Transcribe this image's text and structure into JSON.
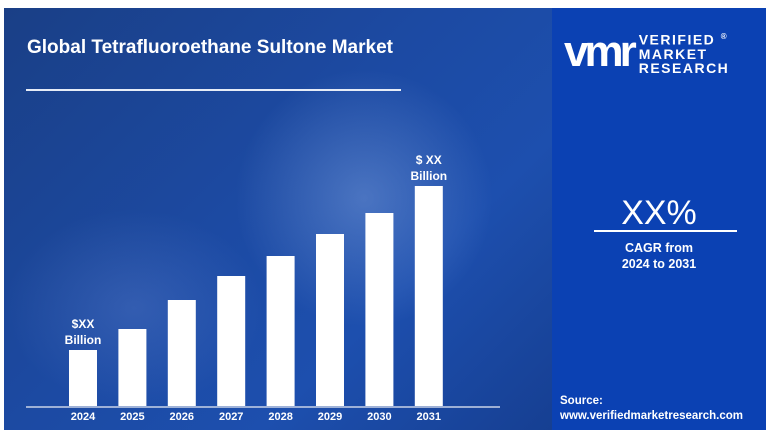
{
  "title": "Global Tetrafluoroethane Sultone Market",
  "brand": {
    "mark": "vmr",
    "line1": "VERIFIED",
    "line2": "MARKET",
    "line3": "RESEARCH",
    "registered": "®"
  },
  "cagr": {
    "value": "XX%",
    "label_line1": "CAGR from",
    "label_line2": "2024 to 2031"
  },
  "source": {
    "label": "Source:",
    "url": "www.verifiedmarketresearch.com"
  },
  "colors": {
    "panel": "#0b41b3",
    "bars": "#ffffff"
  },
  "chart_data": {
    "type": "bar",
    "categories": [
      "2024",
      "2025",
      "2026",
      "2027",
      "2028",
      "2029",
      "2030",
      "2031"
    ],
    "values": [
      56,
      77,
      106,
      130,
      150,
      172,
      193,
      220
    ],
    "ylim": [
      0,
      240
    ],
    "grid": false,
    "annotations": [
      {
        "category": "2024",
        "line1": "$XX",
        "line2": "Billion"
      },
      {
        "category": "2031",
        "line1": "$ XX",
        "line2": "Billion"
      }
    ]
  }
}
